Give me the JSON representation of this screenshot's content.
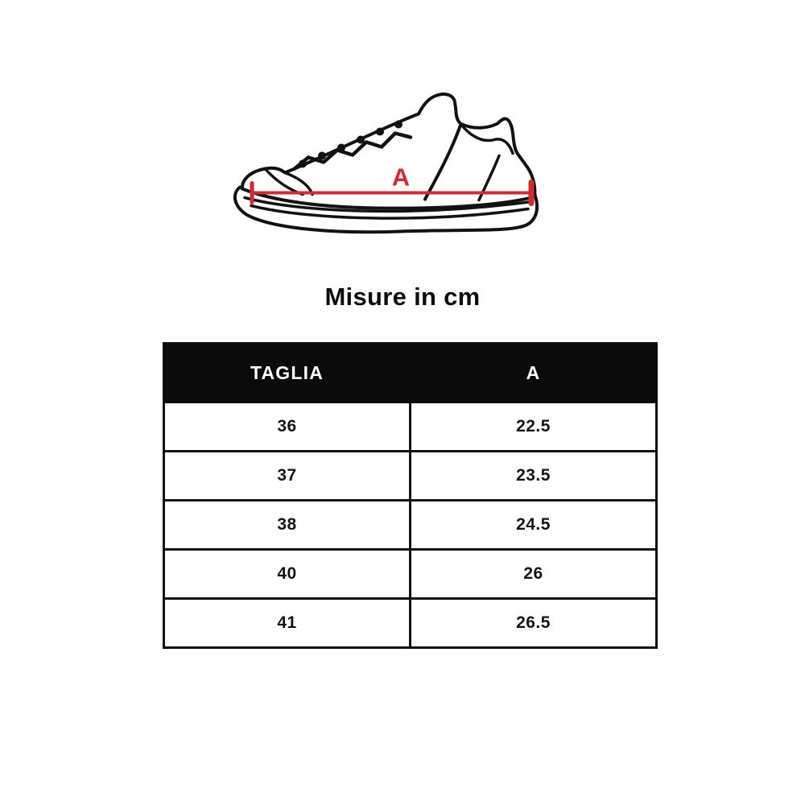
{
  "colors": {
    "accent_red": "#d22b2f",
    "ink": "#121212",
    "header_bg": "#0b0b0b",
    "background": "#ffffff"
  },
  "figure": {
    "measure_label": "A"
  },
  "title": "Misure in cm",
  "table": {
    "columns": [
      "TAGLIA",
      "A"
    ],
    "rows": [
      [
        "36",
        "22.5"
      ],
      [
        "37",
        "23.5"
      ],
      [
        "38",
        "24.5"
      ],
      [
        "40",
        "26"
      ],
      [
        "41",
        "26.5"
      ]
    ]
  },
  "chart_data": {
    "type": "table",
    "title": "Misure in cm",
    "columns": [
      "TAGLIA",
      "A"
    ],
    "rows": [
      [
        36,
        22.5
      ],
      [
        37,
        23.5
      ],
      [
        38,
        24.5
      ],
      [
        40,
        26
      ],
      [
        41,
        26.5
      ]
    ],
    "unit": "cm",
    "measure_label": "A"
  }
}
